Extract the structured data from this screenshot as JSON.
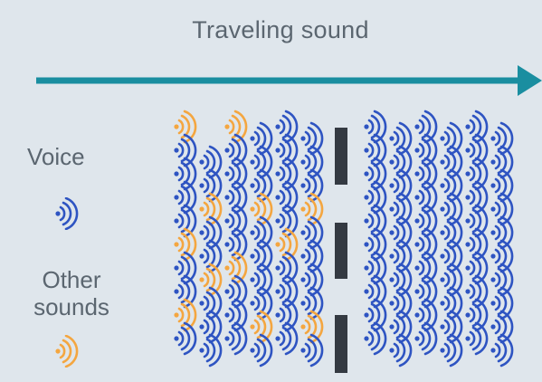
{
  "title": "Traveling sound",
  "legend": {
    "voice_label": "Voice",
    "other_label_line1": "Other",
    "other_label_line2": "sounds",
    "voice_icon": "sound-wave-icon",
    "other_icon": "sound-wave-icon"
  },
  "colors": {
    "background": "#dfe6ec",
    "arrow": "#1a8ea0",
    "voice": "#2e54c2",
    "other": "#f4a640",
    "barrier": "#343a42",
    "text": "#5b6670"
  }
}
